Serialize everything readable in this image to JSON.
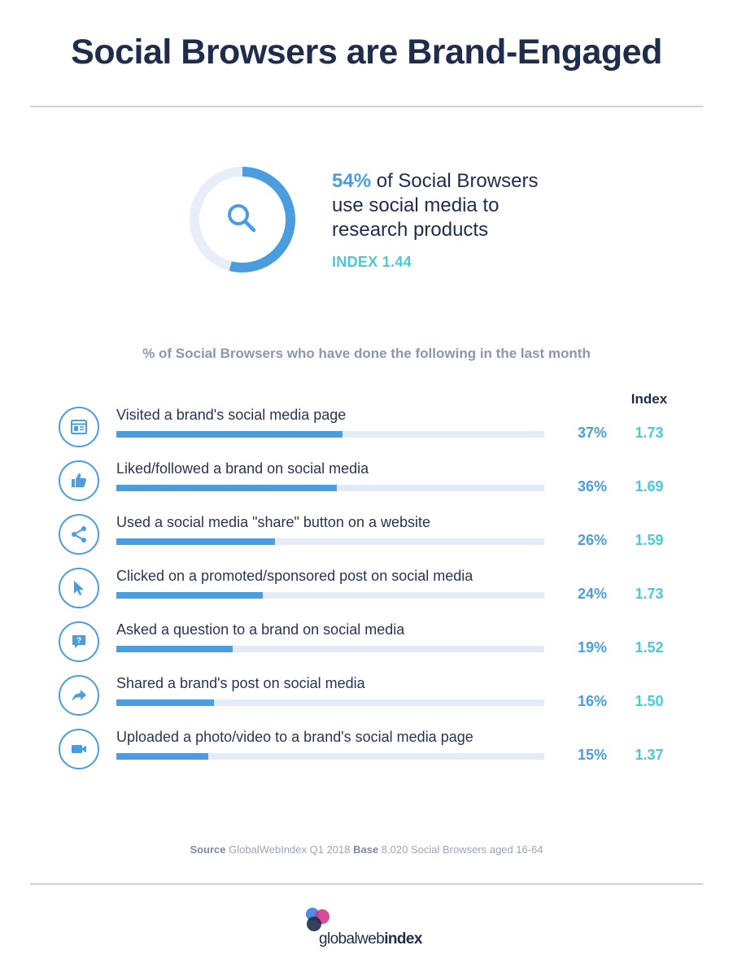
{
  "title": "Social Browsers are Brand-Engaged",
  "highlight": {
    "percent": "54%",
    "text_line1": " of Social Browsers",
    "text_line2": "use social media to",
    "text_line3": "research products",
    "index": "INDEX 1.44",
    "donut_fraction": 0.54,
    "icon": "search-icon"
  },
  "colors": {
    "navy": "#1f2d4a",
    "blue": "#4a9ee0",
    "teal": "#4cc9d6",
    "track": "#e3ebf6",
    "grey": "#8b97aa"
  },
  "chart_data": {
    "type": "bar",
    "orientation": "horizontal",
    "title": "% of Social Browsers who have done the following in the last month",
    "index_header": "Index",
    "xlim": [
      0,
      70
    ],
    "categories": [
      "Visited a brand's social media page",
      "Liked/followed a brand on social media",
      "Used a social media \"share\" button on a website",
      "Clicked on a promoted/sponsored post on social media",
      "Asked a question to a brand on social media",
      "Shared a brand's post on social media",
      "Uploaded a photo/video to a brand's social media page"
    ],
    "values": [
      37,
      36,
      26,
      24,
      19,
      16,
      15
    ],
    "value_labels": [
      "37%",
      "36%",
      "26%",
      "24%",
      "19%",
      "16%",
      "15%"
    ],
    "index_values": [
      "1.73",
      "1.69",
      "1.59",
      "1.73",
      "1.52",
      "1.50",
      "1.37"
    ],
    "icons": [
      "browser-page-icon",
      "thumbs-up-icon",
      "share-icon",
      "cursor-icon",
      "question-bubble-icon",
      "forward-arrow-icon",
      "video-camera-icon"
    ]
  },
  "source": {
    "source_label": "Source",
    "source_text": " GlobalWebIndex Q1 2018 ",
    "base_label": "Base",
    "base_text": " 8,020 Social Browsers aged 16-64"
  },
  "logo": {
    "light": "global",
    "mid": "web",
    "bold": "index"
  }
}
